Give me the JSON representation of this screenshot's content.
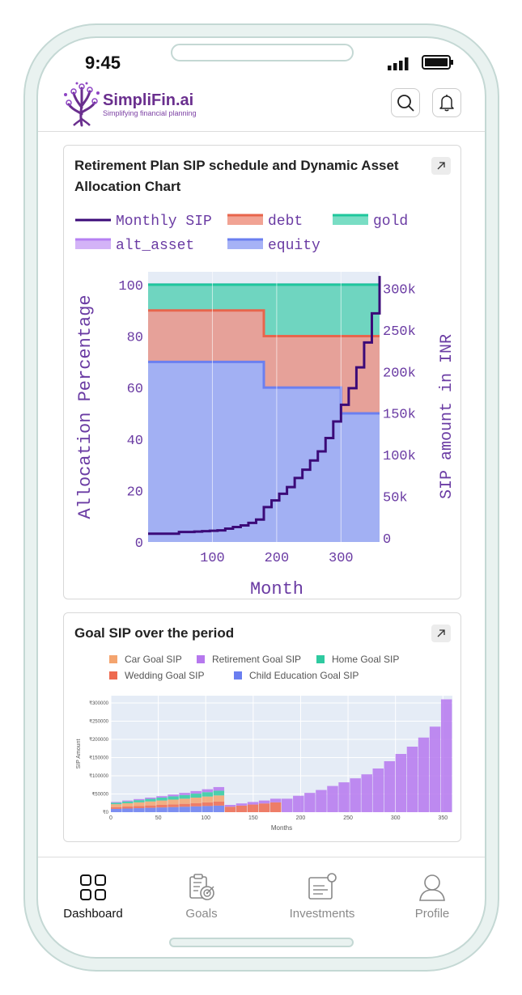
{
  "status": {
    "time": "9:45"
  },
  "brand": {
    "name": "SimpliFin.ai",
    "tagline": "Simplifying financial planning"
  },
  "header": {
    "search_icon": "search-icon",
    "bell_icon": "bell-icon"
  },
  "card1": {
    "title_line1": "Retirement Plan SIP schedule and Dynamic Asset",
    "title_line2": "Allocation Chart"
  },
  "card2": {
    "title": "Goal SIP over the period"
  },
  "chart_data": [
    {
      "type": "area",
      "xlabel": "Month",
      "ylabel": "Allocation Percentage",
      "y2label": "SIP amount in INR",
      "xlim": [
        0,
        360
      ],
      "ylim": [
        0,
        105
      ],
      "y2lim": [
        -5000,
        320000
      ],
      "x_ticks": [
        "100",
        "200",
        "300"
      ],
      "y_ticks": [
        "0",
        "20",
        "40",
        "60",
        "80",
        "100"
      ],
      "y2_ticks": [
        "0",
        "50k",
        "100k",
        "150k",
        "200k",
        "250k",
        "300k"
      ],
      "legend": [
        "Monthly SIP",
        "debt",
        "gold",
        "alt_asset",
        "equity"
      ],
      "colors": {
        "equity": "#6b7ff0",
        "debt": "#e8654c",
        "gold": "#1fc79c",
        "alt_asset": "#b680f2",
        "sip": "#3b0a78"
      },
      "x": [
        0,
        180,
        180,
        300,
        300,
        360
      ],
      "series": [
        {
          "name": "equity",
          "values": [
            70,
            70,
            60,
            60,
            50,
            50
          ]
        },
        {
          "name": "debt",
          "values": [
            90,
            90,
            80,
            80,
            80,
            80
          ]
        },
        {
          "name": "gold",
          "values": [
            100,
            100,
            100,
            100,
            100,
            100
          ]
        },
        {
          "name": "alt_asset",
          "values": [
            100,
            100,
            100,
            100,
            100,
            100
          ]
        }
      ],
      "sip": {
        "name": "Monthly SIP",
        "x": [
          0,
          12,
          24,
          36,
          48,
          60,
          72,
          84,
          96,
          108,
          120,
          132,
          144,
          156,
          168,
          180,
          192,
          204,
          216,
          228,
          240,
          252,
          264,
          276,
          288,
          300,
          312,
          324,
          336,
          348,
          360
        ],
        "values": [
          5000,
          5000,
          5000,
          5000,
          7000,
          7000,
          7500,
          8000,
          8500,
          9000,
          11000,
          13000,
          15000,
          18000,
          22000,
          37000,
          45000,
          53000,
          61000,
          72000,
          82000,
          93000,
          104000,
          120000,
          140000,
          160000,
          180000,
          205000,
          235000,
          270000,
          315000
        ]
      }
    },
    {
      "type": "bar",
      "xlabel": "Months",
      "ylabel": "SIP Amount",
      "xlim": [
        0,
        360
      ],
      "ylim": [
        0,
        320000
      ],
      "x_ticks": [
        "0",
        "50",
        "100",
        "150",
        "200",
        "250",
        "300",
        "350"
      ],
      "y_ticks": [
        "₹0",
        "₹50000",
        "₹100000",
        "₹150000",
        "₹200000",
        "₹250000",
        "₹300000"
      ],
      "legend": [
        "Car Goal SIP",
        "Retirement Goal SIP",
        "Home Goal SIP",
        "Wedding Goal SIP",
        "Child Education Goal SIP"
      ],
      "colors": {
        "car": "#f4a46e",
        "retirement": "#b678ee",
        "home": "#2fcaa0",
        "wedding": "#ee6a4f",
        "child": "#6a7ef0"
      },
      "x": [
        0,
        12,
        24,
        36,
        48,
        60,
        72,
        84,
        96,
        108,
        120,
        132,
        144,
        156,
        168,
        180,
        192,
        204,
        216,
        228,
        240,
        252,
        264,
        276,
        288,
        300,
        312,
        324,
        336,
        348
      ],
      "series": [
        {
          "name": "Child Education Goal SIP",
          "values": [
            9000,
            10000,
            11000,
            12000,
            13000,
            14000,
            15000,
            16000,
            17000,
            18000,
            0,
            0,
            0,
            0,
            0,
            0,
            0,
            0,
            0,
            0,
            0,
            0,
            0,
            0,
            0,
            0,
            0,
            0,
            0,
            0
          ]
        },
        {
          "name": "Wedding Goal SIP",
          "values": [
            5000,
            5500,
            6000,
            6500,
            7000,
            7500,
            8000,
            9000,
            10000,
            11000,
            15000,
            18000,
            21000,
            24000,
            27000,
            0,
            0,
            0,
            0,
            0,
            0,
            0,
            0,
            0,
            0,
            0,
            0,
            0,
            0,
            0
          ]
        },
        {
          "name": "Car Goal SIP",
          "values": [
            8000,
            9000,
            10000,
            11000,
            12000,
            13000,
            14000,
            15000,
            16000,
            17000,
            0,
            0,
            0,
            0,
            0,
            0,
            0,
            0,
            0,
            0,
            0,
            0,
            0,
            0,
            0,
            0,
            0,
            0,
            0,
            0
          ]
        },
        {
          "name": "Home Goal SIP",
          "values": [
            4000,
            5000,
            6000,
            7000,
            8000,
            9000,
            10000,
            11000,
            12000,
            13000,
            0,
            0,
            0,
            0,
            0,
            0,
            0,
            0,
            0,
            0,
            0,
            0,
            0,
            0,
            0,
            0,
            0,
            0,
            0,
            0
          ]
        },
        {
          "name": "Retirement Goal SIP",
          "values": [
            2000,
            2500,
            3000,
            3500,
            4000,
            5000,
            6000,
            7000,
            8000,
            10000,
            5000,
            6000,
            7000,
            8000,
            10000,
            37000,
            45000,
            53000,
            61000,
            72000,
            82000,
            93000,
            104000,
            120000,
            140000,
            160000,
            180000,
            205000,
            235000,
            310000
          ]
        }
      ]
    }
  ],
  "nav": [
    {
      "label": "Dashboard",
      "icon": "dashboard-icon",
      "active": true
    },
    {
      "label": "Goals",
      "icon": "goals-icon",
      "active": false
    },
    {
      "label": "Investments",
      "icon": "investments-icon",
      "active": false
    },
    {
      "label": "Profile",
      "icon": "profile-icon",
      "active": false
    }
  ]
}
